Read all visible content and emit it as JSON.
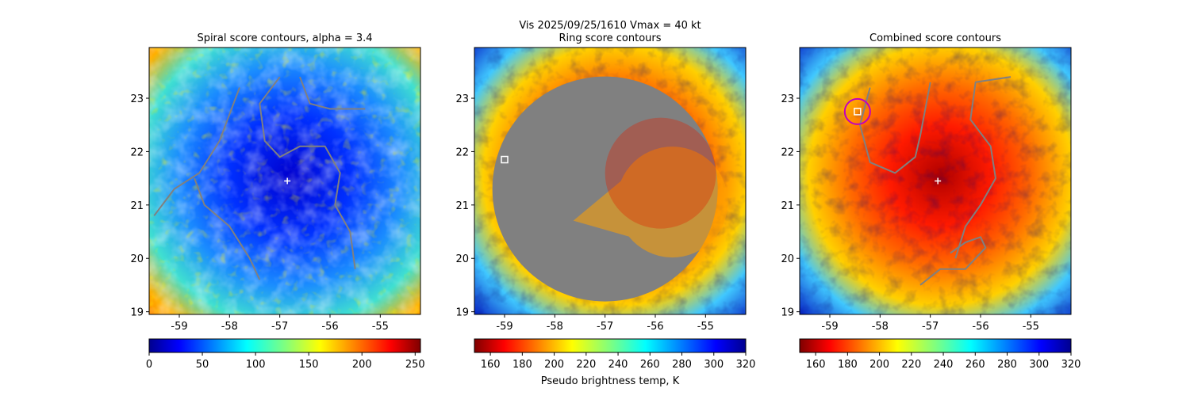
{
  "figure": {
    "suptitle_line1": "Vis  2025/09/25/1610    Vmax = 40 kt",
    "colors": {
      "contour": "#808080",
      "center_marker": "#ffffff",
      "best_point_marker": "#ffffff",
      "circle": "#c000c0",
      "ring_mask": "#808080"
    }
  },
  "chart_data": [
    {
      "type": "heatmap",
      "title": "Spiral score contours, alpha =  3.4",
      "xlim": [
        -59.6,
        -54.2
      ],
      "ylim": [
        18.95,
        23.95
      ],
      "xticks": [
        "-59",
        "-58",
        "-57",
        "-56",
        "-55"
      ],
      "yticks": [
        "19",
        "20",
        "21",
        "22",
        "23"
      ],
      "colormap": "jet",
      "colorbar": {
        "range": [
          0,
          255
        ],
        "ticks": [
          "0",
          "50",
          "100",
          "150",
          "200",
          "250"
        ],
        "label": ""
      },
      "center": {
        "lon": -56.85,
        "lat": 21.45
      },
      "contours": [
        [
          [
            -59.5,
            20.8
          ],
          [
            -59.1,
            21.3
          ],
          [
            -58.6,
            21.6
          ],
          [
            -58.2,
            22.2
          ],
          [
            -58.0,
            22.7
          ],
          [
            -57.8,
            23.2
          ]
        ],
        [
          [
            -58.7,
            21.5
          ],
          [
            -58.5,
            21.0
          ],
          [
            -58.0,
            20.6
          ],
          [
            -57.6,
            20.0
          ],
          [
            -57.4,
            19.6
          ]
        ],
        [
          [
            -57.0,
            23.4
          ],
          [
            -57.4,
            22.9
          ],
          [
            -57.3,
            22.2
          ],
          [
            -57.0,
            21.9
          ],
          [
            -56.6,
            22.1
          ],
          [
            -56.1,
            22.1
          ],
          [
            -55.8,
            21.6
          ],
          [
            -55.9,
            21.0
          ],
          [
            -55.6,
            20.5
          ],
          [
            -55.5,
            19.8
          ]
        ],
        [
          [
            -56.6,
            23.4
          ],
          [
            -56.4,
            22.9
          ],
          [
            -56.0,
            22.8
          ],
          [
            -55.3,
            22.8
          ]
        ]
      ]
    },
    {
      "type": "heatmap",
      "title": "Ring score contours",
      "xlim": [
        -59.6,
        -54.2
      ],
      "ylim": [
        18.95,
        23.95
      ],
      "xticks": [
        "-59",
        "-58",
        "-57",
        "-56",
        "-55"
      ],
      "yticks": [
        "19",
        "20",
        "21",
        "22",
        "23"
      ],
      "colormap": "jet_r",
      "colorbar": {
        "range": [
          150,
          320
        ],
        "ticks": [
          "160",
          "180",
          "200",
          "220",
          "240",
          "260",
          "280",
          "300",
          "320"
        ],
        "label": "Pseudo brightness temp, K"
      },
      "ring_mask_center": {
        "lon": -57.0,
        "lat": 21.3
      },
      "best_point": {
        "lon": -59.0,
        "lat": 21.85
      }
    },
    {
      "type": "heatmap",
      "title": "Combined score contours",
      "xlim": [
        -59.6,
        -54.2
      ],
      "ylim": [
        18.95,
        23.95
      ],
      "xticks": [
        "-59",
        "-58",
        "-57",
        "-56",
        "-55"
      ],
      "yticks": [
        "19",
        "20",
        "21",
        "22",
        "23"
      ],
      "colormap": "jet_r",
      "colorbar": {
        "range": [
          150,
          320
        ],
        "ticks": [
          "160",
          "180",
          "200",
          "220",
          "240",
          "260",
          "280",
          "300",
          "320"
        ],
        "label": ""
      },
      "center": {
        "lon": -56.85,
        "lat": 21.45
      },
      "best_point": {
        "lon": -58.45,
        "lat": 22.75
      },
      "contours": [
        [
          [
            -58.2,
            23.2
          ],
          [
            -58.4,
            22.5
          ],
          [
            -58.2,
            21.8
          ],
          [
            -57.7,
            21.6
          ],
          [
            -57.3,
            21.9
          ],
          [
            -57.2,
            22.3
          ],
          [
            -57.0,
            23.3
          ]
        ],
        [
          [
            -55.4,
            23.4
          ],
          [
            -56.1,
            23.3
          ],
          [
            -56.2,
            22.6
          ],
          [
            -55.8,
            22.1
          ],
          [
            -55.7,
            21.5
          ],
          [
            -56.0,
            21.0
          ],
          [
            -56.3,
            20.6
          ],
          [
            -56.5,
            20.0
          ]
        ],
        [
          [
            -57.2,
            19.5
          ],
          [
            -56.8,
            19.8
          ],
          [
            -56.3,
            19.8
          ],
          [
            -55.9,
            20.2
          ],
          [
            -56.0,
            20.4
          ],
          [
            -56.3,
            20.3
          ],
          [
            -56.6,
            20.1
          ]
        ]
      ]
    }
  ]
}
